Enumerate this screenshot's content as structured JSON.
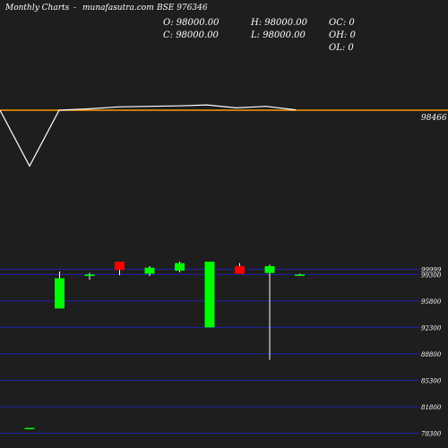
{
  "header": {
    "site_left": "Monthly Charts",
    "site_dash": "-",
    "site_right": "munafasutra.com",
    "symbol": "BSE 976346",
    "open": "O: 98000.00",
    "high": "H: 98000.00",
    "close": "C: 98000.00",
    "low": "L: 98000.00",
    "oc": "OC: 0",
    "oh": "OH: 0",
    "ol": "OL: 0"
  },
  "colors": {
    "background": "#1e1e1e",
    "bull": "#00ff00",
    "bear": "#ff0000",
    "line": "#ffffff",
    "reference_line": "#ff9900",
    "grid": "#2020aa"
  },
  "chart_data": [
    {
      "type": "line",
      "title": "",
      "reference_value": 98466,
      "reference_label": "98466",
      "values": [
        98466,
        97900,
        98466,
        98480,
        98500,
        98505,
        98510,
        98520,
        98490,
        98505,
        98470
      ]
    },
    {
      "type": "candlestick",
      "ylim": [
        78000,
        101000
      ],
      "yticks": [
        99999,
        99300,
        95800,
        92300,
        88800,
        85300,
        81800,
        78300
      ],
      "ytick_labels": [
        "99999",
        "99300",
        "95800",
        "92300",
        "88800",
        "85300",
        "81800",
        "78300"
      ],
      "candles": [
        {
          "open": 79000,
          "close": 79000,
          "high": 79000,
          "low": 79000
        },
        {
          "open": 94800,
          "close": 98800,
          "high": 99700,
          "low": 94800
        },
        {
          "open": 99100,
          "close": 99300,
          "high": 99500,
          "low": 98600
        },
        {
          "open": 101000,
          "close": 99900,
          "high": 101000,
          "low": 99200
        },
        {
          "open": 99400,
          "close": 100200,
          "high": 100400,
          "low": 99100
        },
        {
          "open": 99800,
          "close": 100800,
          "high": 101000,
          "low": 99600
        },
        {
          "open": 92300,
          "close": 101000,
          "high": 101000,
          "low": 92300
        },
        {
          "open": 100400,
          "close": 99400,
          "high": 100800,
          "low": 99400
        },
        {
          "open": 99500,
          "close": 100400,
          "high": 100600,
          "low": 88000
        },
        {
          "open": 99200,
          "close": 99300,
          "high": 99400,
          "low": 99100
        }
      ]
    }
  ]
}
